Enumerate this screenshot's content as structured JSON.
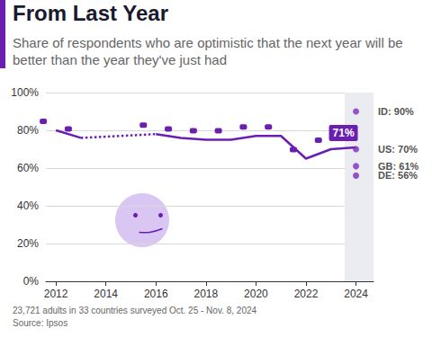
{
  "chart_data": {
    "type": "line",
    "title": "From Last Year",
    "subtitle": "Share of respondents who are optimistic that the next year will be better than the year they've just had",
    "notes": [
      "23,721 adults in 33 countries surveyed Oct. 25 - Nov. 8, 2024",
      "Source: Ipsos"
    ],
    "x": [
      2012,
      2013,
      2014,
      2015,
      2016,
      2017,
      2018,
      2019,
      2020,
      2021,
      2022,
      2023,
      2024
    ],
    "series": [
      {
        "type": "line",
        "color": "#6a1fb0",
        "line_style": "solid",
        "marker": "none",
        "values": [
          80,
          76,
          null,
          null,
          78,
          76,
          75,
          75,
          77,
          77,
          65,
          70,
          71
        ],
        "value_labels": [
          null,
          null,
          null,
          null,
          null,
          null,
          null,
          null,
          null,
          null,
          null,
          null,
          "71%"
        ]
      },
      {
        "type": "scatter",
        "color": "#7b2cbf",
        "marker": "circle",
        "values": [
          null,
          null,
          null,
          null,
          null,
          null,
          null,
          null,
          null,
          null,
          null,
          null,
          90
        ],
        "value_labels": [
          null,
          null,
          null,
          null,
          null,
          null,
          null,
          null,
          null,
          null,
          null,
          null,
          "ID: 90%"
        ]
      },
      {
        "type": "scatter",
        "color": "#7b2cbf",
        "marker": "circle",
        "values": [
          null,
          null,
          null,
          null,
          null,
          null,
          null,
          null,
          null,
          null,
          null,
          null,
          70
        ],
        "value_labels": [
          null,
          null,
          null,
          null,
          null,
          null,
          null,
          null,
          null,
          null,
          null,
          null,
          "US: 70%"
        ]
      },
      {
        "type": "scatter",
        "color": "#7b2cbf",
        "marker": "circle",
        "values": [
          null,
          null,
          null,
          null,
          null,
          null,
          null,
          null,
          null,
          null,
          null,
          null,
          61
        ],
        "value_labels": [
          null,
          null,
          null,
          null,
          null,
          null,
          null,
          null,
          null,
          null,
          null,
          null,
          "GB: 61%"
        ]
      },
      {
        "type": "scatter",
        "color": "#7b2cbf",
        "marker": "circle",
        "values": [
          null,
          null,
          null,
          null,
          null,
          null,
          null,
          null,
          null,
          null,
          null,
          null,
          56
        ],
        "value_labels": [
          null,
          null,
          null,
          null,
          null,
          null,
          null,
          null,
          null,
          null,
          null,
          null,
          "DE: 56%"
        ]
      }
    ],
    "xlim": [
      2011.6,
      2024.7
    ],
    "xticks": [
      2012,
      2014,
      2016,
      2018,
      2020,
      2022,
      2024
    ],
    "ylim": [
      0,
      100
    ],
    "yticks": [
      {
        "value": 0,
        "label": "0%"
      },
      {
        "value": 20,
        "label": "20%"
      },
      {
        "value": 40,
        "label": "40%"
      },
      {
        "value": 60,
        "label": "60%"
      },
      {
        "value": 80,
        "label": "80%"
      },
      {
        "value": 100,
        "label": "100%"
      }
    ],
    "grid": true
  }
}
